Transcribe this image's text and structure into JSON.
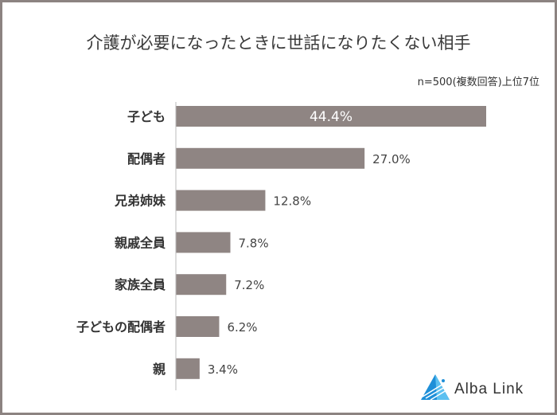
{
  "chart_data": {
    "type": "bar",
    "orientation": "horizontal",
    "title": "介護が必要になったときに世話になりたくない相手",
    "subtitle": "n=500(複数回答)上位7位",
    "categories": [
      "子ども",
      "配偶者",
      "兄弟姉妹",
      "親戚全員",
      "家族全員",
      "子どもの配偶者",
      "親"
    ],
    "values": [
      44.4,
      27.0,
      12.8,
      7.8,
      7.2,
      6.2,
      3.4
    ],
    "data_labels": [
      "44.4%",
      "27.0%",
      "12.8%",
      "7.8%",
      "7.2%",
      "6.2%",
      "3.4%"
    ],
    "xlim": [
      0,
      50
    ],
    "grid": false,
    "bar_color": "#8f8583"
  },
  "brand": {
    "name": "Alba Link",
    "logo_color": "#1e8fd8"
  }
}
